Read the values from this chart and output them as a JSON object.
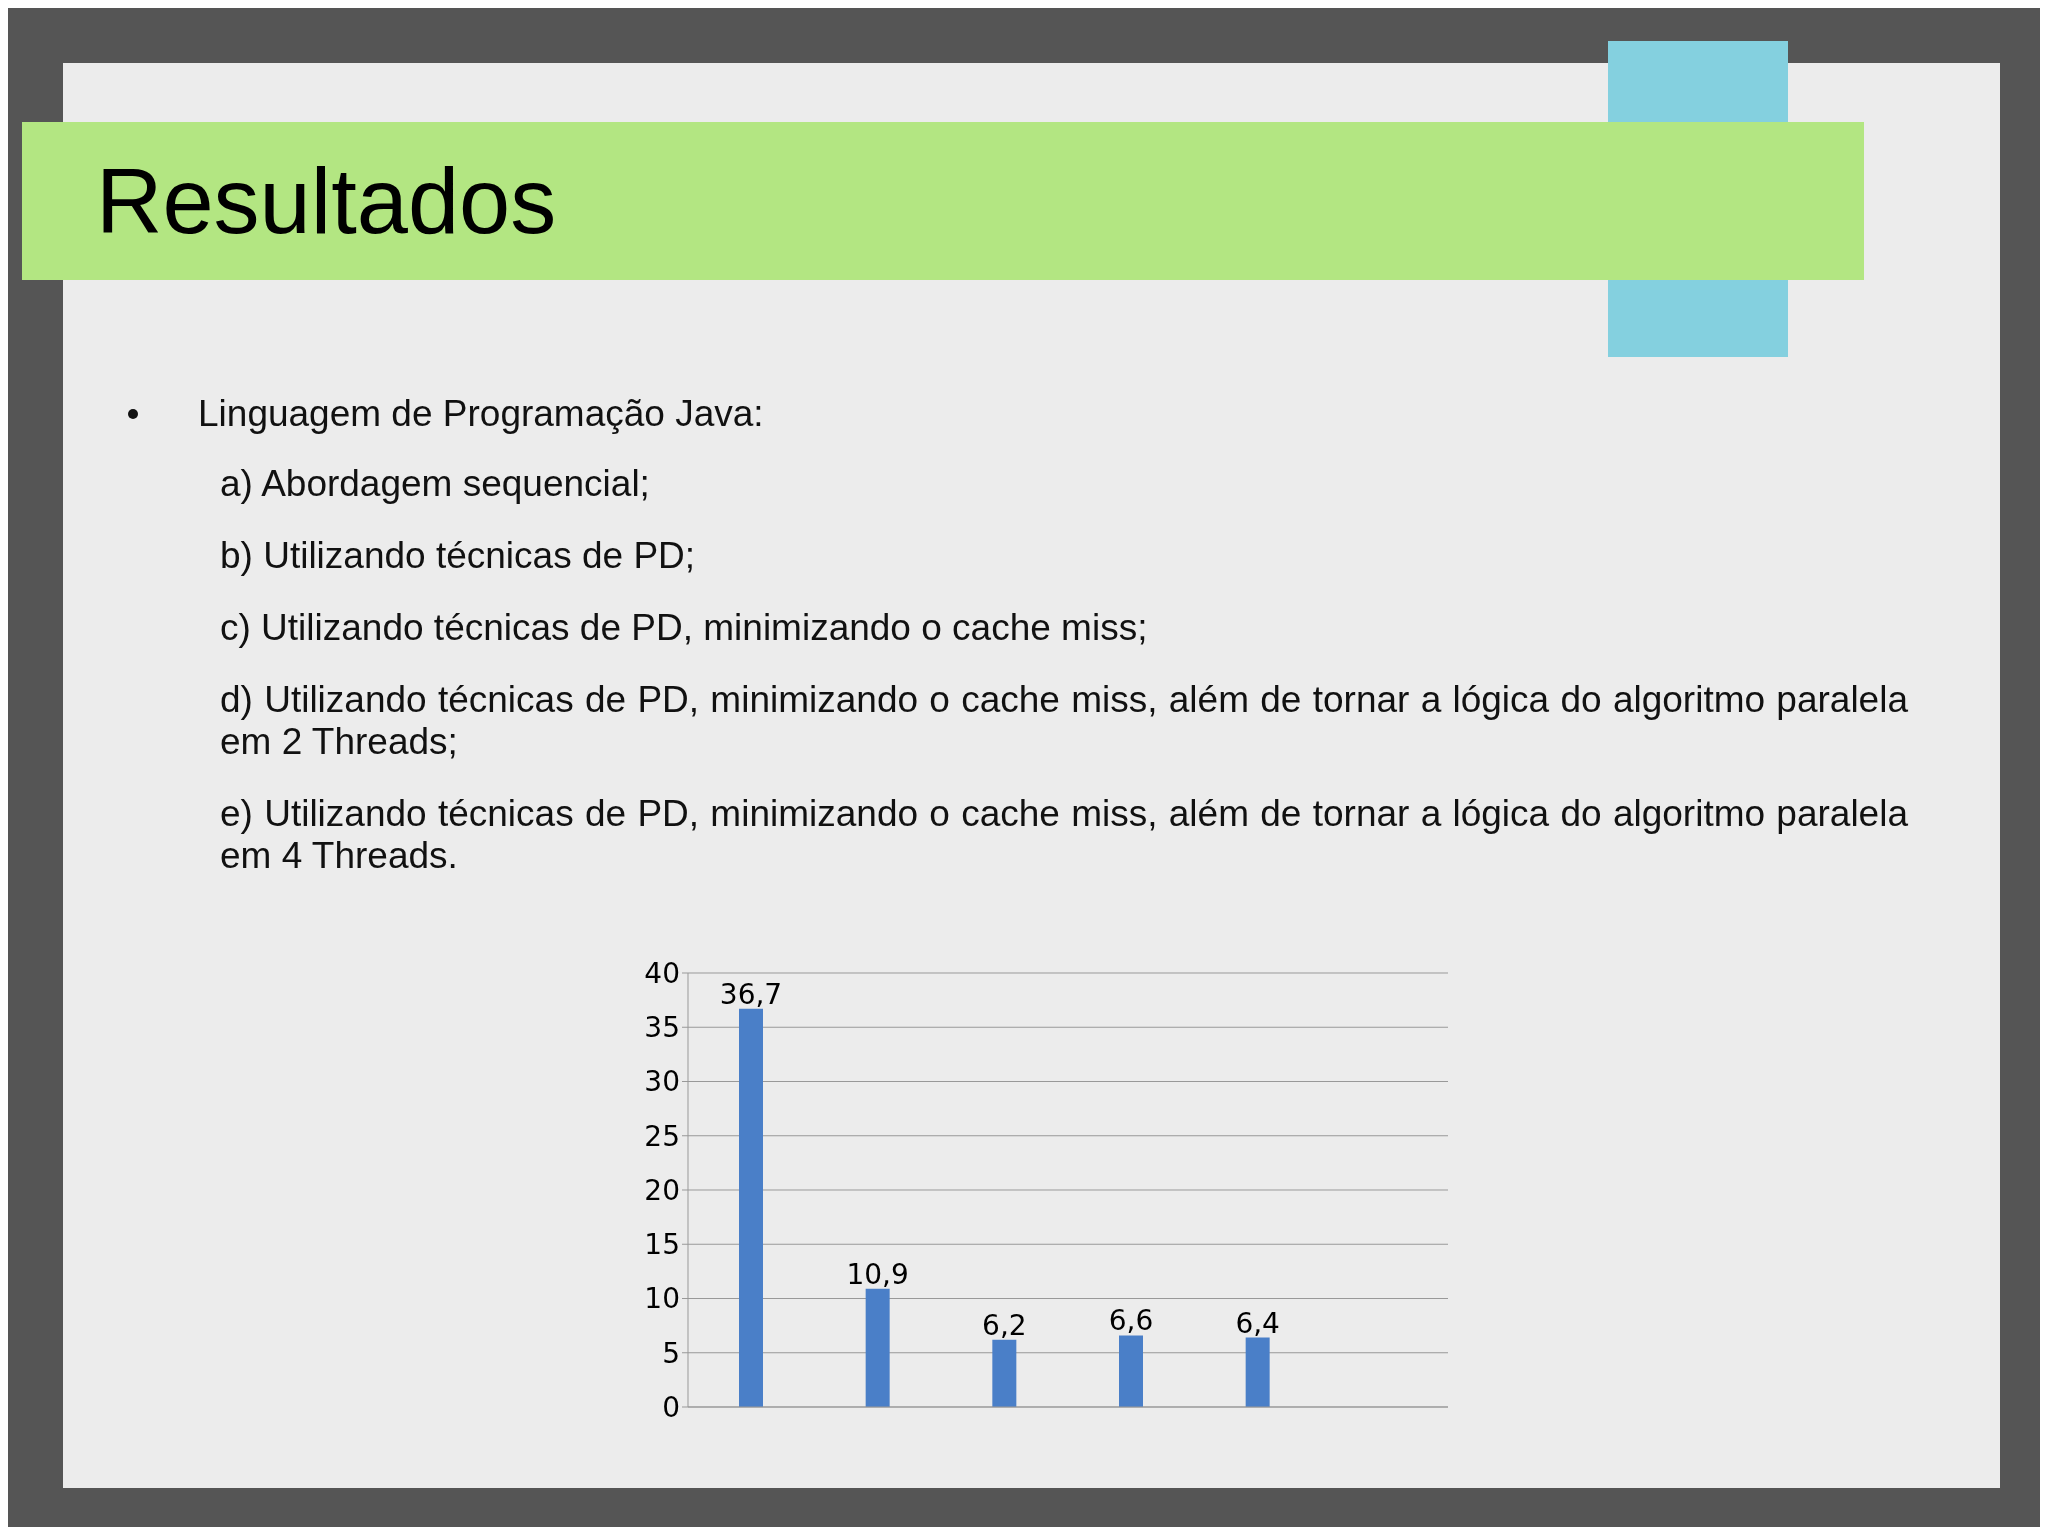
{
  "chart_data": {
    "type": "bar",
    "title": "Resultados",
    "annotations": [
      "Linguagem de Programação Java:",
      "a) Abordagem sequencial;",
      "b) Utilizando técnicas de PD;",
      "c) Utilizando técnicas de PD, minimizando o cache miss;",
      "d) Utilizando técnicas de PD, minimizando o cache miss, além de tornar a lógica do algoritmo paralela em 2 Threads;",
      "e) Utilizando técnicas de PD, minimizando o cache miss, além de tornar a lógica do algoritmo paralela em 4 Threads."
    ],
    "categories": [
      null,
      null,
      null,
      null,
      null,
      null
    ],
    "values": [
      36.7,
      10.9,
      6.2,
      6.6,
      6.4,
      null
    ],
    "value_labels": [
      "36,7",
      "10,9",
      "6,2",
      "6,6",
      "6,4",
      null
    ],
    "color": "#4a7fc8",
    "ylim": [
      0,
      40
    ],
    "yticks": [
      0,
      5,
      10,
      15,
      20,
      25,
      30,
      35,
      40
    ],
    "grid": "y",
    "tick_labels": "y"
  }
}
